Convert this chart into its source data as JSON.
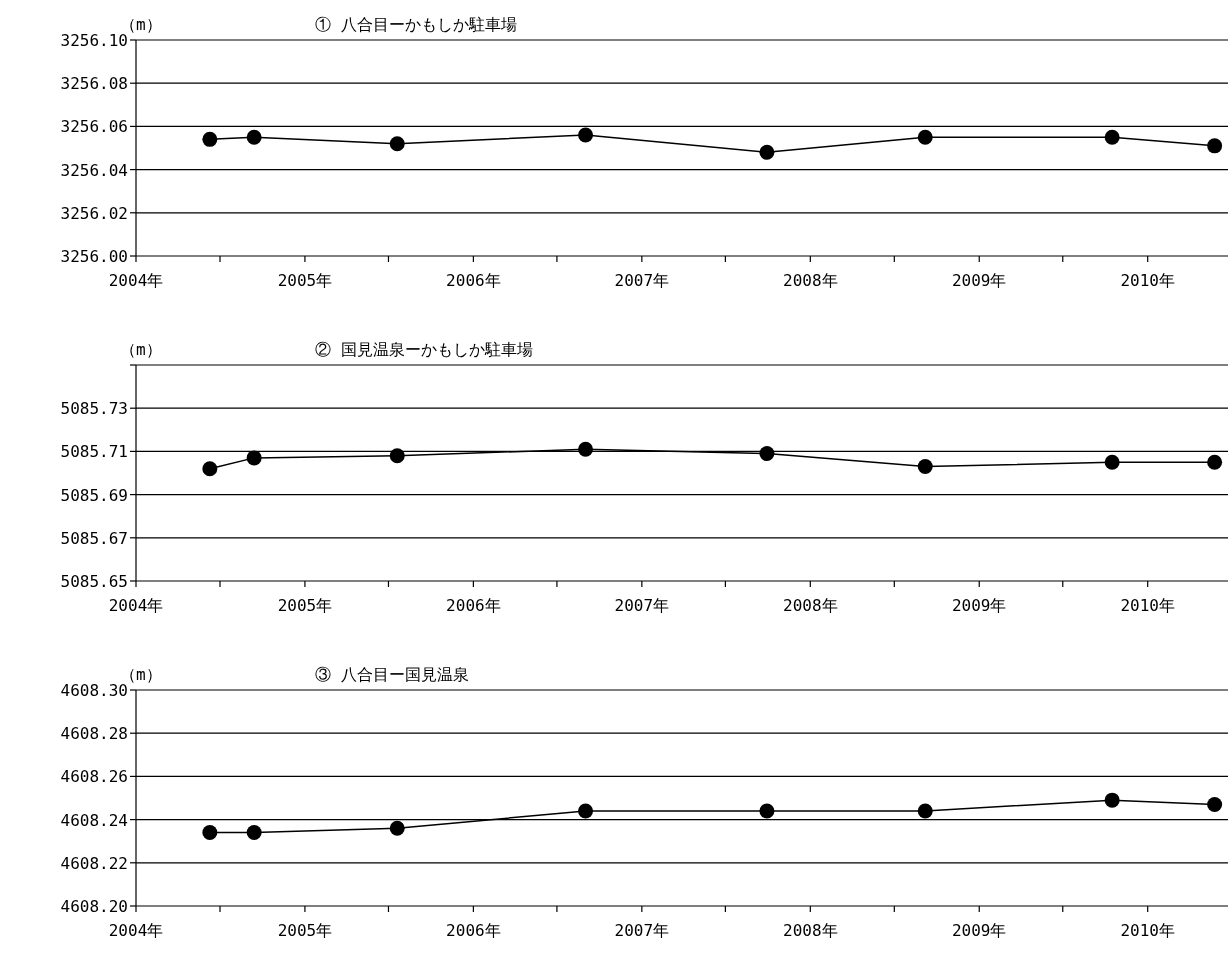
{
  "chart_data": [
    {
      "type": "line",
      "title": "① 八合目ーかもしか駐車場",
      "ylabel": "（m）",
      "x": [
        "2004-06-09",
        "2004-09-13",
        "2005-07-20",
        "2006-09-01",
        "2007-09-29",
        "2008-09-06",
        "2009-10-16",
        "2010-05-26"
      ],
      "series": [
        {
          "color": "#000000",
          "values": [
            3256.054,
            3256.055,
            3256.052,
            3256.056,
            3256.048,
            3256.055,
            3256.055,
            3256.051
          ]
        }
      ],
      "xlim": [
        "2004-01-01",
        "2010-06-24"
      ],
      "ylim": [
        3256.0,
        3256.1
      ],
      "xticks": [
        {
          "value": "2004-01-01",
          "label": "2004年"
        },
        {
          "value": "2004-07-01",
          "label": null
        },
        {
          "value": "2005-01-01",
          "label": "2005年"
        },
        {
          "value": "2005-07-01",
          "label": null
        },
        {
          "value": "2006-01-01",
          "label": "2006年"
        },
        {
          "value": "2006-07-01",
          "label": null
        },
        {
          "value": "2007-01-01",
          "label": "2007年"
        },
        {
          "value": "2007-07-01",
          "label": null
        },
        {
          "value": "2008-01-01",
          "label": "2008年"
        },
        {
          "value": "2008-07-01",
          "label": null
        },
        {
          "value": "2009-01-01",
          "label": "2009年"
        },
        {
          "value": "2009-07-01",
          "label": null
        },
        {
          "value": "2010-01-01",
          "label": "2010年"
        }
      ],
      "yticks": [
        {
          "value": 3256.0,
          "label": "3256.00"
        },
        {
          "value": 3256.02,
          "label": "3256.02"
        },
        {
          "value": 3256.04,
          "label": "3256.04"
        },
        {
          "value": 3256.06,
          "label": "3256.06"
        },
        {
          "value": 3256.08,
          "label": "3256.08"
        },
        {
          "value": 3256.1,
          "label": "3256.10"
        }
      ],
      "grid": "y",
      "marker": "circle",
      "line_style": "solid"
    },
    {
      "type": "line",
      "title": "② 国見温泉ーかもしか駐車場",
      "ylabel": "（m）",
      "x": [
        "2004-06-09",
        "2004-09-13",
        "2005-07-20",
        "2006-09-01",
        "2007-09-29",
        "2008-09-06",
        "2009-10-16",
        "2010-05-26"
      ],
      "series": [
        {
          "color": "#000000",
          "values": [
            5085.702,
            5085.707,
            5085.708,
            5085.711,
            5085.709,
            5085.703,
            5085.705,
            5085.705
          ]
        }
      ],
      "xlim": [
        "2004-01-01",
        "2010-06-24"
      ],
      "ylim": [
        5085.65,
        5085.75
      ],
      "xticks": [
        {
          "value": "2004-01-01",
          "label": "2004年"
        },
        {
          "value": "2004-07-01",
          "label": null
        },
        {
          "value": "2005-01-01",
          "label": "2005年"
        },
        {
          "value": "2005-07-01",
          "label": null
        },
        {
          "value": "2006-01-01",
          "label": "2006年"
        },
        {
          "value": "2006-07-01",
          "label": null
        },
        {
          "value": "2007-01-01",
          "label": "2007年"
        },
        {
          "value": "2007-07-01",
          "label": null
        },
        {
          "value": "2008-01-01",
          "label": "2008年"
        },
        {
          "value": "2008-07-01",
          "label": null
        },
        {
          "value": "2009-01-01",
          "label": "2009年"
        },
        {
          "value": "2009-07-01",
          "label": null
        },
        {
          "value": "2010-01-01",
          "label": "2010年"
        }
      ],
      "yticks": [
        {
          "value": 5085.65,
          "label": "5085.65"
        },
        {
          "value": 5085.67,
          "label": "5085.67"
        },
        {
          "value": 5085.69,
          "label": "5085.69"
        },
        {
          "value": 5085.71,
          "label": "5085.71"
        },
        {
          "value": 5085.73,
          "label": "5085.73"
        },
        {
          "value": 5085.75,
          "label": null
        }
      ],
      "grid": "y",
      "marker": "circle",
      "line_style": "solid"
    },
    {
      "type": "line",
      "title": "③ 八合目ー国見温泉",
      "ylabel": "（m）",
      "x": [
        "2004-06-09",
        "2004-09-13",
        "2005-07-20",
        "2006-09-01",
        "2007-09-29",
        "2008-09-06",
        "2009-10-16",
        "2010-05-26"
      ],
      "series": [
        {
          "color": "#000000",
          "values": [
            4608.234,
            4608.234,
            4608.236,
            4608.244,
            4608.244,
            4608.244,
            4608.249,
            4608.247
          ]
        }
      ],
      "xlim": [
        "2004-01-01",
        "2010-06-24"
      ],
      "ylim": [
        4608.2,
        4608.3
      ],
      "xticks": [
        {
          "value": "2004-01-01",
          "label": "2004年"
        },
        {
          "value": "2004-07-01",
          "label": null
        },
        {
          "value": "2005-01-01",
          "label": "2005年"
        },
        {
          "value": "2005-07-01",
          "label": null
        },
        {
          "value": "2006-01-01",
          "label": "2006年"
        },
        {
          "value": "2006-07-01",
          "label": null
        },
        {
          "value": "2007-01-01",
          "label": "2007年"
        },
        {
          "value": "2007-07-01",
          "label": null
        },
        {
          "value": "2008-01-01",
          "label": "2008年"
        },
        {
          "value": "2008-07-01",
          "label": null
        },
        {
          "value": "2009-01-01",
          "label": "2009年"
        },
        {
          "value": "2009-07-01",
          "label": null
        },
        {
          "value": "2010-01-01",
          "label": "2010年"
        }
      ],
      "yticks": [
        {
          "value": 4608.2,
          "label": "4608.20"
        },
        {
          "value": 4608.22,
          "label": "4608.22"
        },
        {
          "value": 4608.24,
          "label": "4608.24"
        },
        {
          "value": 4608.26,
          "label": "4608.26"
        },
        {
          "value": 4608.28,
          "label": "4608.28"
        },
        {
          "value": 4608.3,
          "label": "4608.30"
        }
      ],
      "grid": "y",
      "marker": "circle",
      "line_style": "solid"
    }
  ]
}
